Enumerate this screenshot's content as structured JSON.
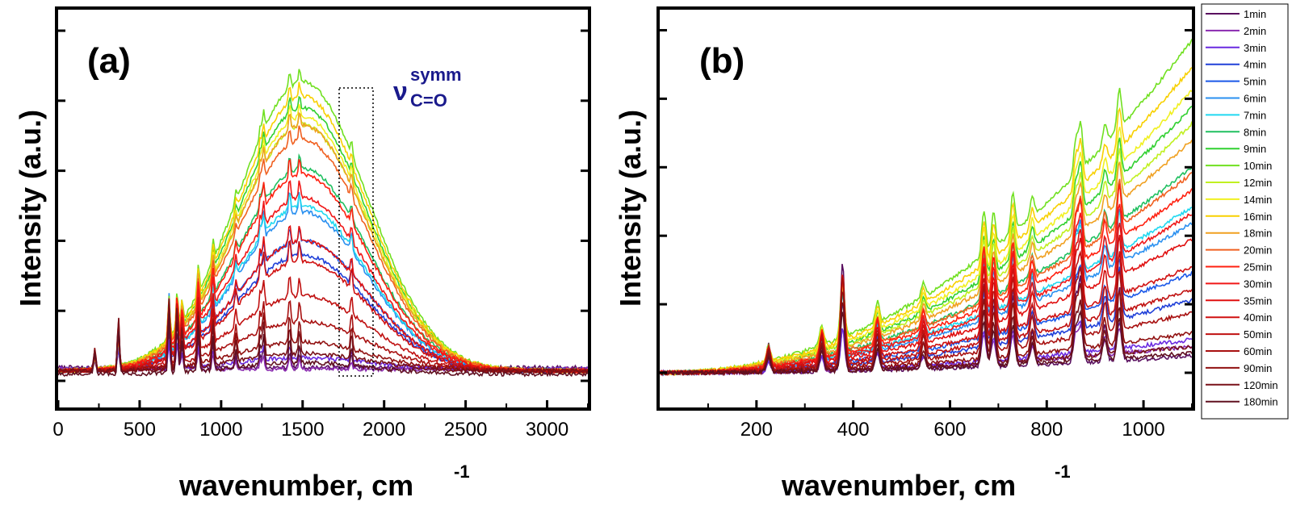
{
  "chart_data": [
    {
      "type": "line",
      "panel": "(a)",
      "xlabel": "wavenumber, cm",
      "xlabel_sup": "-1",
      "ylabel": "Intensity (a.u.)",
      "xlim": [
        0,
        3250
      ],
      "ylim": [
        0,
        1.0
      ],
      "xticks": [
        0,
        500,
        1000,
        1500,
        2000,
        2500,
        3000
      ],
      "grid": false,
      "annotation": {
        "symbol": "ν",
        "sup": "symm",
        "sub": "C=O"
      },
      "highlight_box_x": [
        1720,
        1920
      ],
      "peaks": [
        [
          225,
          2.0
        ],
        [
          370,
          4.5
        ],
        [
          680,
          6.0
        ],
        [
          730,
          5.5
        ],
        [
          760,
          3.5
        ],
        [
          860,
          4.5
        ],
        [
          950,
          3.5
        ],
        [
          1090,
          1.8
        ],
        [
          1240,
          2.0
        ],
        [
          1260,
          3.0
        ],
        [
          1420,
          2.5
        ],
        [
          1480,
          2.0
        ],
        [
          1800,
          2.0
        ]
      ],
      "series": [
        {
          "name": "1min",
          "amplitude": 0.0,
          "peak_scale": 0.02,
          "baseline": 0.04,
          "base_slope": 0.0
        },
        {
          "name": "2min",
          "amplitude": 0.0,
          "peak_scale": 0.014,
          "baseline": 0.035,
          "base_slope": 0.0
        },
        {
          "name": "3min",
          "amplitude": 0.04,
          "peak_scale": 0.014,
          "baseline": 0.035,
          "base_slope": 0.0
        },
        {
          "name": "4min",
          "amplitude": 0.4,
          "peak_scale": 0.02,
          "baseline": 0.03,
          "base_slope": 0.0
        },
        {
          "name": "5min",
          "amplitude": 0.45,
          "peak_scale": 0.02,
          "baseline": 0.03,
          "base_slope": 0.0
        },
        {
          "name": "6min",
          "amplitude": 0.55,
          "peak_scale": 0.03,
          "baseline": 0.03,
          "base_slope": 0.0
        },
        {
          "name": "7min",
          "amplitude": 0.57,
          "peak_scale": 0.02,
          "baseline": 0.03,
          "base_slope": 0.0
        },
        {
          "name": "8min",
          "amplitude": 0.7,
          "peak_scale": 0.02,
          "baseline": 0.03,
          "base_slope": 0.0
        },
        {
          "name": "9min",
          "amplitude": 0.91,
          "peak_scale": 0.02,
          "baseline": 0.03,
          "base_slope": 0.0
        },
        {
          "name": "10min",
          "amplitude": 1.0,
          "peak_scale": 0.02,
          "baseline": 0.03,
          "base_slope": 0.0
        },
        {
          "name": "12min",
          "amplitude": 0.85,
          "peak_scale": 0.02,
          "baseline": 0.03,
          "base_slope": 0.0
        },
        {
          "name": "14min",
          "amplitude": 0.88,
          "peak_scale": 0.02,
          "baseline": 0.03,
          "base_slope": 0.0
        },
        {
          "name": "16min",
          "amplitude": 0.95,
          "peak_scale": 0.02,
          "baseline": 0.03,
          "base_slope": 0.0
        },
        {
          "name": "18min",
          "amplitude": 0.85,
          "peak_scale": 0.02,
          "baseline": 0.03,
          "base_slope": 0.0
        },
        {
          "name": "20min",
          "amplitude": 0.8,
          "peak_scale": 0.02,
          "baseline": 0.03,
          "base_slope": 0.0
        },
        {
          "name": "25min",
          "amplitude": 0.68,
          "peak_scale": 0.025,
          "baseline": 0.03,
          "base_slope": 0.0
        },
        {
          "name": "30min",
          "amplitude": 0.6,
          "peak_scale": 0.025,
          "baseline": 0.03,
          "base_slope": 0.0
        },
        {
          "name": "35min",
          "amplitude": 0.45,
          "peak_scale": 0.025,
          "baseline": 0.03,
          "base_slope": 0.0
        },
        {
          "name": "40min",
          "amplitude": 0.38,
          "peak_scale": 0.03,
          "baseline": 0.03,
          "base_slope": 0.0
        },
        {
          "name": "50min",
          "amplitude": 0.26,
          "peak_scale": 0.03,
          "baseline": 0.03,
          "base_slope": 0.0
        },
        {
          "name": "60min",
          "amplitude": 0.17,
          "peak_scale": 0.03,
          "baseline": 0.03,
          "base_slope": 0.0
        },
        {
          "name": "90min",
          "amplitude": 0.1,
          "peak_scale": 0.035,
          "baseline": 0.03,
          "base_slope": 0.0
        },
        {
          "name": "120min",
          "amplitude": 0.06,
          "peak_scale": 0.035,
          "baseline": 0.03,
          "base_slope": 0.0
        },
        {
          "name": "180min",
          "amplitude": 0.04,
          "peak_scale": 0.03,
          "baseline": 0.02,
          "base_slope": 0.0
        }
      ]
    },
    {
      "type": "line",
      "panel": "(b)",
      "xlabel": "wavenumber, cm",
      "xlabel_sup": "-1",
      "ylabel": "Intensity (a.u.)",
      "xlim": [
        0,
        1100
      ],
      "ylim": [
        0,
        1.0
      ],
      "xticks": [
        200,
        400,
        600,
        800,
        1000
      ],
      "grid": false,
      "peaks": [
        [
          225,
          1.5
        ],
        [
          335,
          2.0
        ],
        [
          378,
          6.0
        ],
        [
          450,
          2.0
        ],
        [
          545,
          1.5
        ],
        [
          670,
          4.5
        ],
        [
          690,
          3.5
        ],
        [
          730,
          4.0
        ],
        [
          770,
          2.0
        ],
        [
          860,
          3.5
        ],
        [
          870,
          4.5
        ],
        [
          920,
          2.0
        ],
        [
          950,
          4.0
        ]
      ],
      "series": [
        {
          "name": "1min",
          "amplitude": 0.05,
          "peak_scale": 0.055,
          "baseline": 0.0,
          "base_slope": 0.0
        },
        {
          "name": "2min",
          "amplitude": 0.08,
          "peak_scale": 0.02,
          "baseline": 0.0,
          "base_slope": 0.0
        },
        {
          "name": "3min",
          "amplitude": 0.1,
          "peak_scale": 0.02,
          "baseline": 0.0,
          "base_slope": 0.0
        },
        {
          "name": "4min",
          "amplitude": 0.22,
          "peak_scale": 0.04,
          "baseline": 0.0,
          "base_slope": 0.0
        },
        {
          "name": "5min",
          "amplitude": 0.3,
          "peak_scale": 0.03,
          "baseline": 0.0,
          "base_slope": 0.0
        },
        {
          "name": "6min",
          "amplitude": 0.45,
          "peak_scale": 0.04,
          "baseline": 0.0,
          "base_slope": 0.0
        },
        {
          "name": "7min",
          "amplitude": 0.5,
          "peak_scale": 0.03,
          "baseline": 0.0,
          "base_slope": 0.0
        },
        {
          "name": "8min",
          "amplitude": 0.62,
          "peak_scale": 0.03,
          "baseline": 0.0,
          "base_slope": 0.0
        },
        {
          "name": "9min",
          "amplitude": 0.8,
          "peak_scale": 0.03,
          "baseline": 0.0,
          "base_slope": 0.0
        },
        {
          "name": "10min",
          "amplitude": 1.0,
          "peak_scale": 0.03,
          "baseline": 0.0,
          "base_slope": 0.0
        },
        {
          "name": "12min",
          "amplitude": 0.75,
          "peak_scale": 0.03,
          "baseline": 0.0,
          "base_slope": 0.0
        },
        {
          "name": "14min",
          "amplitude": 0.85,
          "peak_scale": 0.03,
          "baseline": 0.0,
          "base_slope": 0.0
        },
        {
          "name": "16min",
          "amplitude": 0.92,
          "peak_scale": 0.03,
          "baseline": 0.0,
          "base_slope": 0.0
        },
        {
          "name": "18min",
          "amplitude": 0.7,
          "peak_scale": 0.03,
          "baseline": 0.0,
          "base_slope": 0.0
        },
        {
          "name": "20min",
          "amplitude": 0.6,
          "peak_scale": 0.035,
          "baseline": 0.0,
          "base_slope": 0.0
        },
        {
          "name": "25min",
          "amplitude": 0.55,
          "peak_scale": 0.04,
          "baseline": 0.0,
          "base_slope": 0.0
        },
        {
          "name": "30min",
          "amplitude": 0.48,
          "peak_scale": 0.04,
          "baseline": 0.0,
          "base_slope": 0.0
        },
        {
          "name": "35min",
          "amplitude": 0.4,
          "peak_scale": 0.04,
          "baseline": 0.0,
          "base_slope": 0.0
        },
        {
          "name": "40min",
          "amplitude": 0.32,
          "peak_scale": 0.045,
          "baseline": 0.0,
          "base_slope": 0.0
        },
        {
          "name": "50min",
          "amplitude": 0.25,
          "peak_scale": 0.045,
          "baseline": 0.0,
          "base_slope": 0.0
        },
        {
          "name": "60min",
          "amplitude": 0.18,
          "peak_scale": 0.045,
          "baseline": 0.0,
          "base_slope": 0.0
        },
        {
          "name": "90min",
          "amplitude": 0.12,
          "peak_scale": 0.04,
          "baseline": 0.0,
          "base_slope": 0.0
        },
        {
          "name": "120min",
          "amplitude": 0.08,
          "peak_scale": 0.035,
          "baseline": 0.0,
          "base_slope": 0.0
        },
        {
          "name": "180min",
          "amplitude": 0.06,
          "peak_scale": 0.03,
          "baseline": 0.0,
          "base_slope": 0.0
        }
      ]
    }
  ],
  "legend": {
    "placement": "right",
    "entries": [
      {
        "label": "1min",
        "color": "#5a1060"
      },
      {
        "label": "2min",
        "color": "#8a2ab0"
      },
      {
        "label": "3min",
        "color": "#6a2ae0"
      },
      {
        "label": "4min",
        "color": "#2040d8"
      },
      {
        "label": "5min",
        "color": "#1a58e8"
      },
      {
        "label": "6min",
        "color": "#2a90f0"
      },
      {
        "label": "7min",
        "color": "#20d8f0"
      },
      {
        "label": "8min",
        "color": "#20c060"
      },
      {
        "label": "9min",
        "color": "#30d030"
      },
      {
        "label": "10min",
        "color": "#70e020"
      },
      {
        "label": "12min",
        "color": "#c0f020"
      },
      {
        "label": "14min",
        "color": "#f0f020"
      },
      {
        "label": "16min",
        "color": "#f8d000"
      },
      {
        "label": "18min",
        "color": "#f0a020"
      },
      {
        "label": "20min",
        "color": "#f06020"
      },
      {
        "label": "25min",
        "color": "#ff2010"
      },
      {
        "label": "30min",
        "color": "#f01818"
      },
      {
        "label": "35min",
        "color": "#e01010"
      },
      {
        "label": "40min",
        "color": "#d01010"
      },
      {
        "label": "50min",
        "color": "#c01010"
      },
      {
        "label": "60min",
        "color": "#a81010"
      },
      {
        "label": "90min",
        "color": "#901010"
      },
      {
        "label": "120min",
        "color": "#781018"
      },
      {
        "label": "180min",
        "color": "#601020"
      }
    ]
  }
}
